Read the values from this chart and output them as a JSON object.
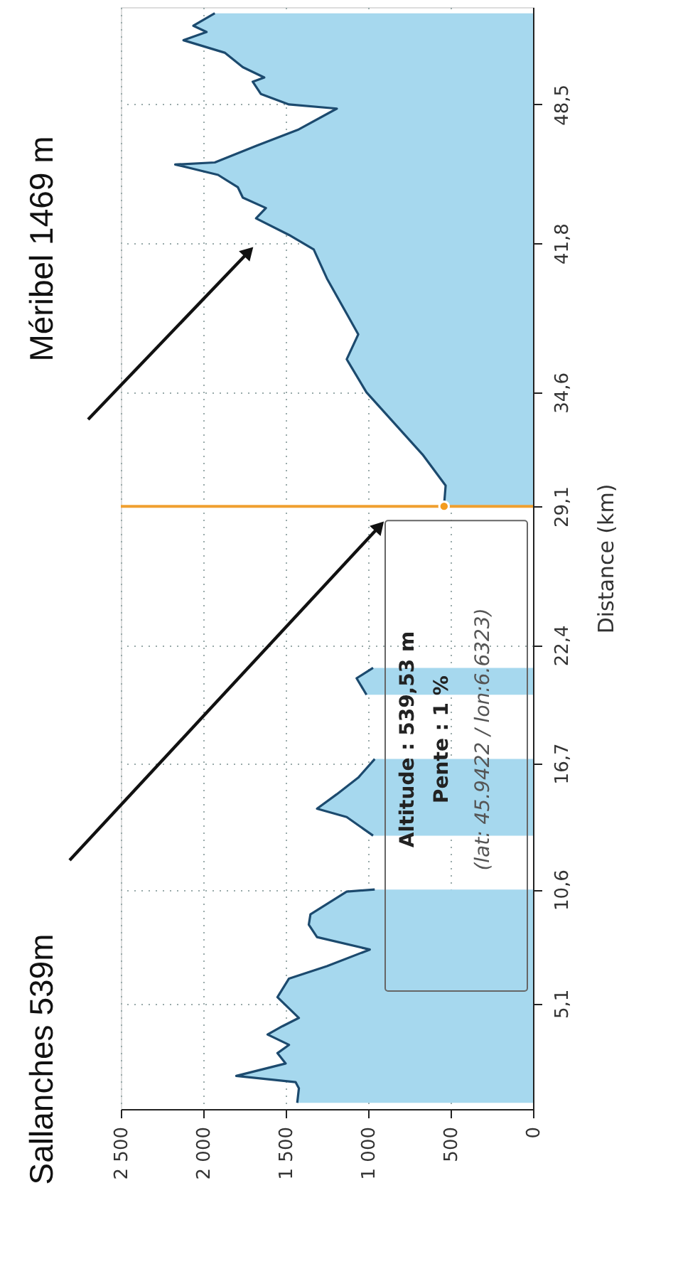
{
  "chart_data": {
    "type": "area",
    "orientation": "horizontal",
    "ylabel": "Distance (km)",
    "annotations": [
      "Sallanches 539m",
      "Méribel 1469 m",
      "Altitude : 539,53 m",
      "Pente : 1 %",
      "(lat: 45.9422 / lon:6.6323)"
    ],
    "x": [
      0.3,
      1.0,
      1.3,
      1.6,
      2.2,
      2.7,
      3.1,
      3.6,
      4.0,
      4.4,
      5.4,
      6.3,
      6.9,
      7.7,
      8.3,
      8.9,
      9.4,
      10.5,
      10.6,
      11.9,
      13.2,
      14.1,
      14.5,
      15.2,
      16.0,
      16.9,
      18.4,
      20.0,
      20.8,
      21.3,
      25.0,
      29.1,
      30.1,
      31.6,
      33.1,
      34.6,
      36.2,
      37.4,
      38.4,
      40.1,
      41.5,
      42.2,
      43.0,
      43.5,
      44.0,
      44.5,
      45.1,
      45.6,
      45.7,
      46.5,
      47.3,
      48.3,
      48.5,
      49.0,
      49.6,
      49.8,
      50.3,
      51.0,
      51.6,
      52.0,
      52.3,
      52.9
    ],
    "series": [
      {
        "color": "#a6d8ee",
        "values": [
          1430,
          1420,
          1440,
          1800,
          1500,
          1550,
          1480,
          1610,
          1520,
          1420,
          1550,
          1480,
          1250,
          990,
          1310,
          1360,
          1350,
          1130,
          960,
          null,
          970,
          1130,
          1310,
          1190,
          1060,
          960,
          null,
          1010,
          1070,
          970,
          null,
          540,
          530,
          670,
          840,
          1010,
          1130,
          1060,
          1130,
          1250,
          1330,
          1480,
          1680,
          1620,
          1760,
          1790,
          1910,
          2170,
          1930,
          1680,
          1420,
          1190,
          1480,
          1650,
          1700,
          1630,
          1760,
          1870,
          2120,
          1980,
          2060,
          1930
        ]
      },
      {
        "type": "scatter",
        "x": [
          29.1
        ],
        "values": [
          539.53
        ],
        "color": "#f39c1f"
      }
    ],
    "ref_lines": [
      {
        "axis": "y",
        "value": 29.1,
        "color": "#f0a030"
      }
    ],
    "ylim": [
      0,
      53.2
    ],
    "yticks": [
      {
        "value": 5.1,
        "label": "5,1"
      },
      {
        "value": 10.6,
        "label": "10,6"
      },
      {
        "value": 16.7,
        "label": "16,7"
      },
      {
        "value": 22.4,
        "label": "22,4"
      },
      {
        "value": 29.1,
        "label": "29,1"
      },
      {
        "value": 34.6,
        "label": "34,6"
      },
      {
        "value": 41.8,
        "label": "41,8"
      },
      {
        "value": 48.5,
        "label": "48,5"
      }
    ],
    "xlim": [
      2500,
      0
    ],
    "xticks": [
      0,
      500,
      {
        "value": 1000,
        "label": "1 000"
      },
      {
        "value": 1500,
        "label": "1 500"
      },
      {
        "value": 2000,
        "label": "2 000"
      },
      {
        "value": 2500,
        "label": "2 500"
      }
    ],
    "grid": true
  }
}
